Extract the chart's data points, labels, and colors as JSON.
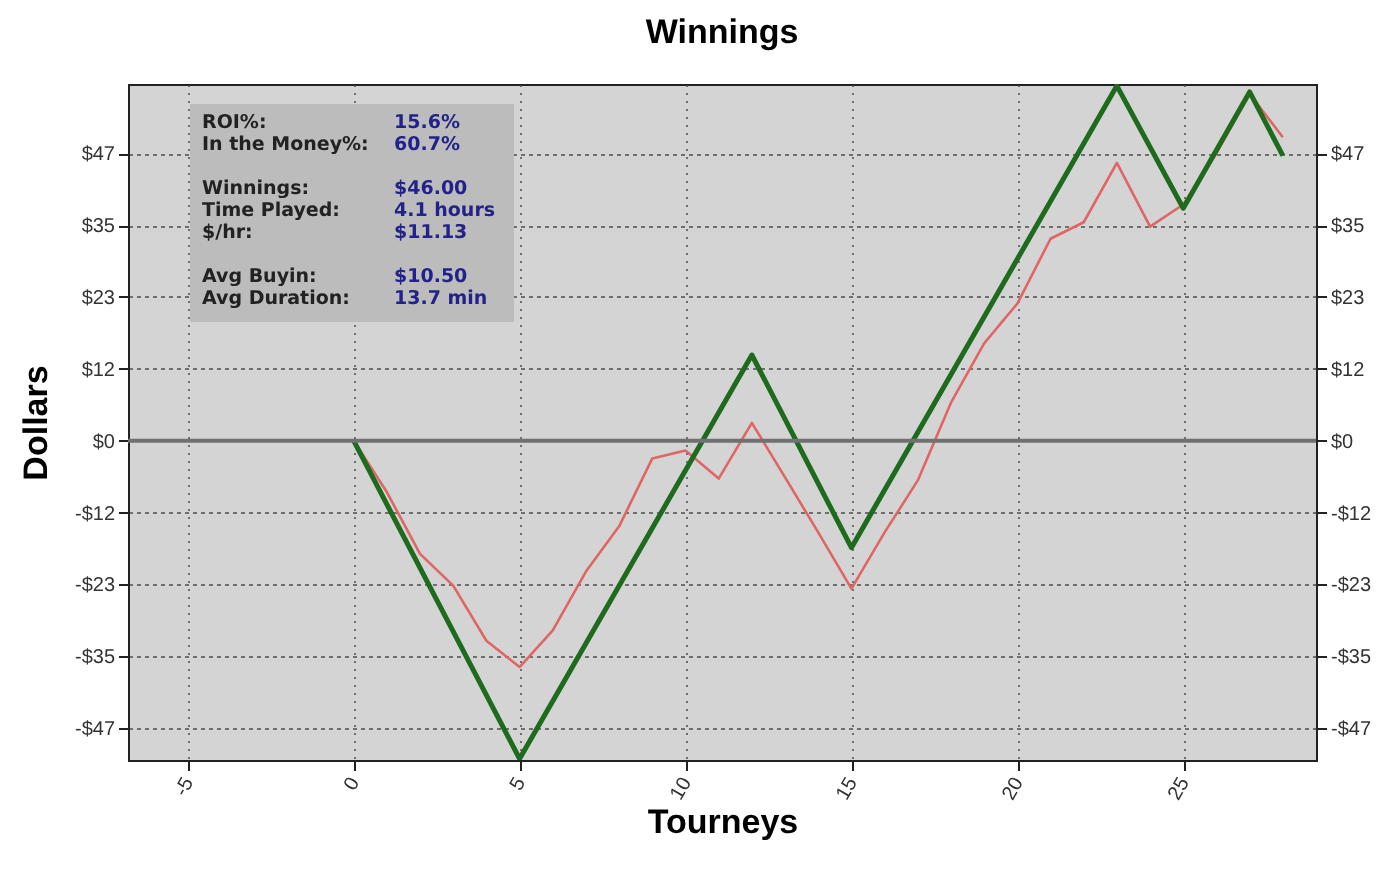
{
  "chart_data": {
    "type": "line",
    "title": "Winnings",
    "xlabel": "Tourneys",
    "ylabel": "Dollars",
    "x": [
      0,
      1,
      2,
      3,
      4,
      5,
      6,
      7,
      8,
      9,
      10,
      11,
      12,
      13,
      14,
      15,
      16,
      17,
      18,
      19,
      20,
      21,
      22,
      23,
      24,
      25,
      26,
      27,
      28
    ],
    "series": [
      {
        "color": "#e06666",
        "values": [
          0,
          -8.4,
          -18.5,
          -23.7,
          -32.7,
          -37,
          -31,
          -21.4,
          -14,
          -2.9,
          -1.6,
          -6.2,
          2.9,
          -6,
          -15,
          -24.2,
          -15,
          -6.5,
          6.2,
          15.9,
          22.4,
          33,
          35.7,
          45.4,
          35,
          38.6,
          47,
          56.7,
          49.6
        ]
      },
      {
        "color": "#1e6b1e",
        "x": [
          0,
          5,
          12,
          15,
          23,
          25,
          27,
          28
        ],
        "values": [
          0,
          -52,
          14,
          -17.5,
          58,
          38,
          57,
          46.6
        ]
      }
    ],
    "xlim": [
      -6.8,
      29
    ],
    "xticks": [
      -5,
      0,
      5,
      10,
      15,
      20,
      25
    ],
    "ylim": [
      -52.2,
      58.3
    ],
    "yticks": [
      {
        "value": -47,
        "label": "-$47"
      },
      {
        "value": -35.25,
        "label": "-$35"
      },
      {
        "value": -23.5,
        "label": "-$23"
      },
      {
        "value": -11.75,
        "label": "-$12"
      },
      {
        "value": 0,
        "label": "$0"
      },
      {
        "value": 11.75,
        "label": "$12"
      },
      {
        "value": 23.5,
        "label": "$23"
      },
      {
        "value": 35.25,
        "label": "$35"
      },
      {
        "value": 47,
        "label": "$47"
      }
    ],
    "y2lim": [
      -52.2,
      58.3
    ],
    "y2ticks": [
      {
        "value": -47,
        "label": "-$47"
      },
      {
        "value": -35.25,
        "label": "-$35"
      },
      {
        "value": -23.5,
        "label": "-$23"
      },
      {
        "value": -11.75,
        "label": "-$12"
      },
      {
        "value": 0,
        "label": "$0"
      },
      {
        "value": 11.75,
        "label": "$12"
      },
      {
        "value": 23.5,
        "label": "$23"
      },
      {
        "value": 35.25,
        "label": "$35"
      },
      {
        "value": 47,
        "label": "$47"
      }
    ],
    "ref_lines": [
      {
        "axis": "y",
        "value": 0,
        "color": "#707070"
      }
    ],
    "grid": true,
    "annotations": [
      "ROI%:",
      "15.6%",
      "In the Money%:",
      "60.7%",
      "Winnings:",
      "$46.00",
      "Time Played:",
      "4.1 hours",
      "$/hr:",
      "$11.13",
      "Avg Buyin:",
      "$10.50",
      "Avg Duration:",
      "13.7 min"
    ]
  }
}
